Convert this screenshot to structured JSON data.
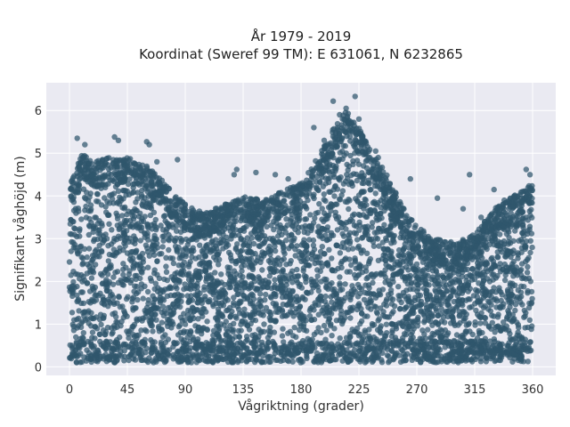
{
  "chart_data": {
    "type": "scatter",
    "title": "År 1979 - 2019",
    "subtitle": "Koordinat (Sweref 99 TM): E 631061, N 6232865",
    "xlabel": "Vågriktning (grader)",
    "ylabel": "Signifikant våghöjd (m)",
    "xlim": [
      -18,
      378
    ],
    "ylim": [
      -0.2,
      6.65
    ],
    "x_ticks": [
      0,
      45,
      90,
      135,
      180,
      225,
      270,
      315,
      360
    ],
    "y_ticks": [
      0,
      1,
      2,
      3,
      4,
      5,
      6
    ],
    "grid": true,
    "marker_color": "#2f566c",
    "background_color": "#eaeaf2",
    "max_envelope": {
      "x": [
        0,
        10,
        20,
        30,
        45,
        60,
        75,
        90,
        105,
        120,
        135,
        150,
        165,
        180,
        195,
        205,
        215,
        225,
        235,
        245,
        255,
        262,
        270,
        285,
        300,
        315,
        330,
        345,
        360
      ],
      "y": [
        4.3,
        5.0,
        4.8,
        4.9,
        4.9,
        4.7,
        4.3,
        3.8,
        3.6,
        3.8,
        4.0,
        3.9,
        4.1,
        4.3,
        5.0,
        5.6,
        6.0,
        5.6,
        5.0,
        4.6,
        4.0,
        3.6,
        3.3,
        3.0,
        2.9,
        3.1,
        3.7,
        4.0,
        4.3
      ]
    },
    "min_value": 0.1,
    "outliers": [
      {
        "x": 6,
        "y": 5.35
      },
      {
        "x": 12,
        "y": 5.2
      },
      {
        "x": 15,
        "y": 4.6
      },
      {
        "x": 35,
        "y": 5.38
      },
      {
        "x": 38,
        "y": 5.3
      },
      {
        "x": 60,
        "y": 5.27
      },
      {
        "x": 62,
        "y": 5.2
      },
      {
        "x": 68,
        "y": 4.8
      },
      {
        "x": 84,
        "y": 4.85
      },
      {
        "x": 128,
        "y": 4.5
      },
      {
        "x": 130,
        "y": 4.62
      },
      {
        "x": 145,
        "y": 4.55
      },
      {
        "x": 160,
        "y": 4.5
      },
      {
        "x": 170,
        "y": 4.4
      },
      {
        "x": 190,
        "y": 5.6
      },
      {
        "x": 198,
        "y": 5.3
      },
      {
        "x": 205,
        "y": 6.22
      },
      {
        "x": 210,
        "y": 5.9
      },
      {
        "x": 215,
        "y": 6.05
      },
      {
        "x": 218,
        "y": 5.75
      },
      {
        "x": 222,
        "y": 6.33
      },
      {
        "x": 225,
        "y": 5.8
      },
      {
        "x": 228,
        "y": 5.4
      },
      {
        "x": 238,
        "y": 5.05
      },
      {
        "x": 240,
        "y": 4.9
      },
      {
        "x": 265,
        "y": 4.4
      },
      {
        "x": 286,
        "y": 3.95
      },
      {
        "x": 306,
        "y": 3.7
      },
      {
        "x": 311,
        "y": 4.5
      },
      {
        "x": 320,
        "y": 3.5
      },
      {
        "x": 330,
        "y": 4.15
      },
      {
        "x": 338,
        "y": 3.9
      },
      {
        "x": 346,
        "y": 4.0
      },
      {
        "x": 355,
        "y": 4.62
      },
      {
        "x": 358,
        "y": 4.5
      },
      {
        "x": 352,
        "y": 4.1
      }
    ]
  }
}
